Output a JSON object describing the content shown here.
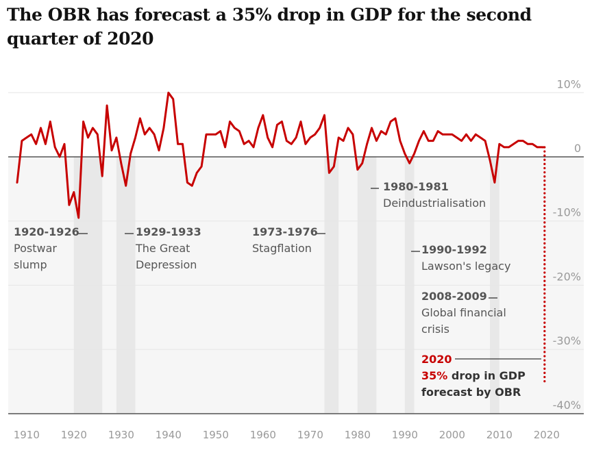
{
  "title": "The OBR has forecast a 35% drop in GDP for the second quarter of 2020",
  "colors": {
    "line": "#c70000",
    "shade": "#e8e8e8",
    "band": "#f6f6f6",
    "grid": "#e6e6e6",
    "axis": "#333333",
    "label": "#999999"
  },
  "chart_data": {
    "type": "line",
    "title": "The OBR has forecast a 35% drop in GDP for the second quarter of 2020",
    "xlim": [
      1907,
      2022
    ],
    "ylim": [
      -40,
      10
    ],
    "x_ticks": [
      1910,
      1920,
      1930,
      1940,
      1950,
      1960,
      1970,
      1980,
      1990,
      2000,
      2010,
      2020
    ],
    "x_tick_labels": [
      "1910",
      "1920",
      "1930",
      "1940",
      "1950",
      "1960",
      "1970",
      "1980",
      "1990",
      "2000",
      "2010",
      "2020"
    ],
    "y_ticks": [
      10,
      0,
      -10,
      -20,
      -30,
      -40
    ],
    "y_tick_labels": [
      "10%",
      "0",
      "-10%",
      "-20%",
      "-30%",
      "-40%"
    ],
    "grid": true,
    "series": [
      {
        "points": [
          [
            1908,
            -4
          ],
          [
            1909,
            2.5
          ],
          [
            1910,
            3
          ],
          [
            1911,
            3.5
          ],
          [
            1912,
            2
          ],
          [
            1913,
            4.5
          ],
          [
            1914,
            2
          ],
          [
            1915,
            5.5
          ],
          [
            1916,
            1.5
          ],
          [
            1917,
            0
          ],
          [
            1918,
            2
          ],
          [
            1919,
            -7.5
          ],
          [
            1920,
            -5.5
          ],
          [
            1921,
            -9.5
          ],
          [
            1922,
            5.5
          ],
          [
            1923,
            3
          ],
          [
            1924,
            4.5
          ],
          [
            1925,
            3.5
          ],
          [
            1926,
            -3
          ],
          [
            1927,
            8
          ],
          [
            1928,
            1
          ],
          [
            1929,
            3
          ],
          [
            1930,
            -1
          ],
          [
            1931,
            -4.5
          ],
          [
            1932,
            0.5
          ],
          [
            1933,
            3
          ],
          [
            1934,
            6
          ],
          [
            1935,
            3.5
          ],
          [
            1936,
            4.5
          ],
          [
            1937,
            3.5
          ],
          [
            1938,
            1
          ],
          [
            1939,
            4.5
          ],
          [
            1940,
            10
          ],
          [
            1941,
            9
          ],
          [
            1942,
            2
          ],
          [
            1943,
            2
          ],
          [
            1944,
            -4
          ],
          [
            1945,
            -4.5
          ],
          [
            1946,
            -2.5
          ],
          [
            1947,
            -1.5
          ],
          [
            1948,
            3.5
          ],
          [
            1949,
            3.5
          ],
          [
            1950,
            3.5
          ],
          [
            1951,
            4
          ],
          [
            1952,
            1.5
          ],
          [
            1953,
            5.5
          ],
          [
            1954,
            4.5
          ],
          [
            1955,
            4
          ],
          [
            1956,
            2
          ],
          [
            1957,
            2.5
          ],
          [
            1958,
            1.5
          ],
          [
            1959,
            4.5
          ],
          [
            1960,
            6.5
          ],
          [
            1961,
            3
          ],
          [
            1962,
            1.5
          ],
          [
            1963,
            5
          ],
          [
            1964,
            5.5
          ],
          [
            1965,
            2.5
          ],
          [
            1966,
            2
          ],
          [
            1967,
            3
          ],
          [
            1968,
            5.5
          ],
          [
            1969,
            2
          ],
          [
            1970,
            3
          ],
          [
            1971,
            3.5
          ],
          [
            1972,
            4.5
          ],
          [
            1973,
            6.5
          ],
          [
            1974,
            -2.5
          ],
          [
            1975,
            -1.5
          ],
          [
            1976,
            3
          ],
          [
            1977,
            2.5
          ],
          [
            1978,
            4.5
          ],
          [
            1979,
            3.5
          ],
          [
            1980,
            -2
          ],
          [
            1981,
            -1
          ],
          [
            1982,
            2
          ],
          [
            1983,
            4.5
          ],
          [
            1984,
            2.5
          ],
          [
            1985,
            4
          ],
          [
            1986,
            3.5
          ],
          [
            1987,
            5.5
          ],
          [
            1988,
            6
          ],
          [
            1989,
            2.5
          ],
          [
            1990,
            0.5
          ],
          [
            1991,
            -1
          ],
          [
            1992,
            0.5
          ],
          [
            1993,
            2.5
          ],
          [
            1994,
            4
          ],
          [
            1995,
            2.5
          ],
          [
            1996,
            2.5
          ],
          [
            1997,
            4
          ],
          [
            1998,
            3.5
          ],
          [
            1999,
            3.5
          ],
          [
            2000,
            3.5
          ],
          [
            2001,
            3
          ],
          [
            2002,
            2.5
          ],
          [
            2003,
            3.5
          ],
          [
            2004,
            2.5
          ],
          [
            2005,
            3.5
          ],
          [
            2006,
            3
          ],
          [
            2007,
            2.5
          ],
          [
            2008,
            -0.5
          ],
          [
            2009,
            -4
          ],
          [
            2010,
            2
          ],
          [
            2011,
            1.5
          ],
          [
            2012,
            1.5
          ],
          [
            2013,
            2
          ],
          [
            2014,
            2.5
          ],
          [
            2015,
            2.5
          ],
          [
            2016,
            2
          ],
          [
            2017,
            2
          ],
          [
            2018,
            1.5
          ],
          [
            2019,
            1.5
          ]
        ]
      }
    ],
    "forecast": {
      "x": 2020,
      "from": 1.5,
      "to": -35
    },
    "shaded_periods": [
      {
        "start": 1920,
        "end": 1926
      },
      {
        "start": 1929,
        "end": 1933
      },
      {
        "start": 1973,
        "end": 1976
      },
      {
        "start": 1980,
        "end": 1984
      },
      {
        "start": 1990,
        "end": 1992
      },
      {
        "start": 2008,
        "end": 2010
      }
    ],
    "annotations": [
      {
        "title": "1920-1926",
        "lines": [
          "Postwar",
          "slump"
        ]
      },
      {
        "title": "1929-1933",
        "lines": [
          "The Great",
          "Depression"
        ]
      },
      {
        "title": "1973-1976",
        "lines": [
          "Stagflation"
        ]
      },
      {
        "title": "1980-1981",
        "lines": [
          "Deindustrialisation"
        ]
      },
      {
        "title": "1990-1992",
        "lines": [
          "Lawson's legacy"
        ]
      },
      {
        "title": "2008-2009",
        "lines": [
          "Global financial",
          "crisis"
        ]
      },
      {
        "title": "2020",
        "lines": [
          "35% drop in GDP",
          "forecast by OBR"
        ]
      }
    ]
  }
}
